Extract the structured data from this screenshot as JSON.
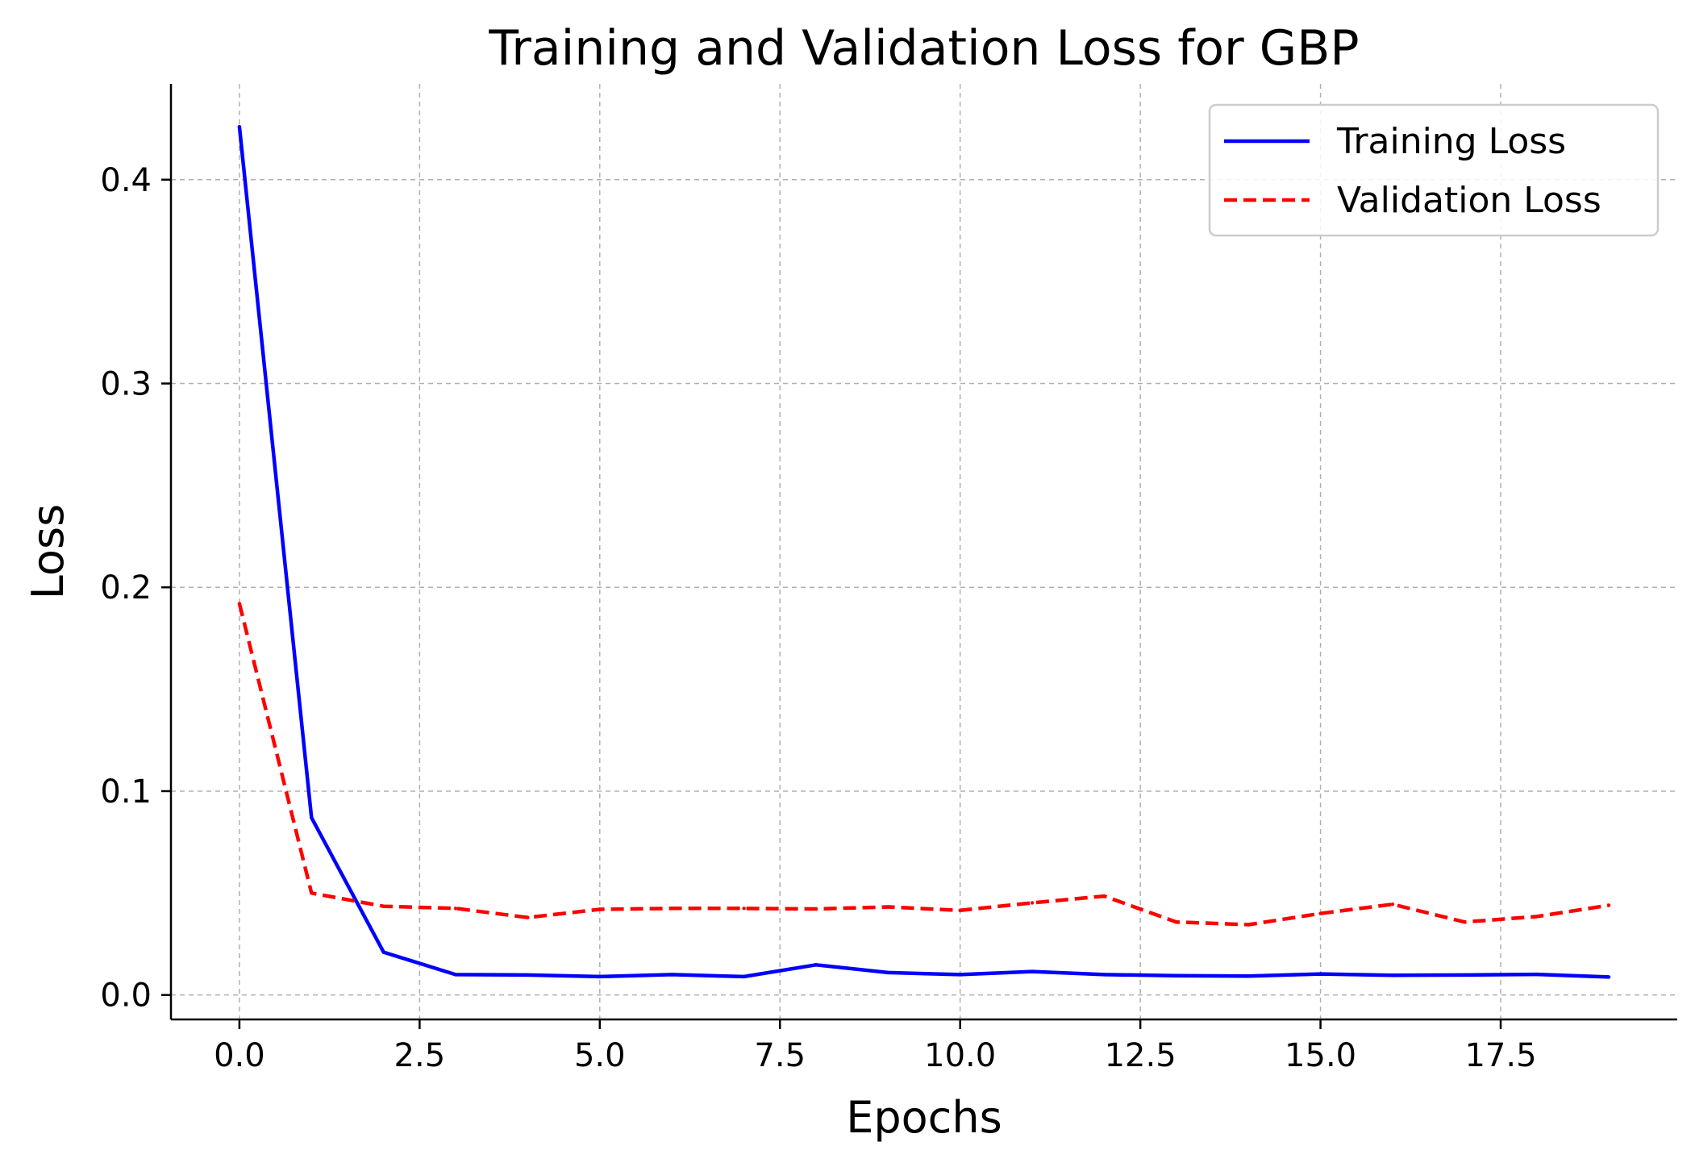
{
  "chart_data": {
    "type": "line",
    "title": "Training and Validation Loss for GBP",
    "xlabel": "Epochs",
    "ylabel": "Loss",
    "xlim": [
      -0.95,
      19.95
    ],
    "ylim": [
      -0.012,
      0.447
    ],
    "xticks": [
      0.0,
      2.5,
      5.0,
      7.5,
      10.0,
      12.5,
      15.0,
      17.5
    ],
    "xtick_labels": [
      "0.0",
      "2.5",
      "5.0",
      "7.5",
      "10.0",
      "12.5",
      "15.0",
      "17.5"
    ],
    "yticks": [
      0.0,
      0.1,
      0.2,
      0.3,
      0.4
    ],
    "ytick_labels": [
      "0.0",
      "0.1",
      "0.2",
      "0.3",
      "0.4"
    ],
    "grid": true,
    "legend_position": "top-right",
    "x": [
      0,
      1,
      2,
      3,
      4,
      5,
      6,
      7,
      8,
      9,
      10,
      11,
      12,
      13,
      14,
      15,
      16,
      17,
      18,
      19
    ],
    "series": [
      {
        "name": "Training Loss",
        "color": "#0000ff",
        "style": "solid",
        "values": [
          0.426,
          0.087,
          0.021,
          0.01,
          0.0098,
          0.009,
          0.01,
          0.009,
          0.0148,
          0.011,
          0.01,
          0.0115,
          0.01,
          0.0095,
          0.0093,
          0.0103,
          0.0097,
          0.0098,
          0.0101,
          0.0088
        ]
      },
      {
        "name": "Validation Loss",
        "color": "#ff0000",
        "style": "dashed",
        "values": [
          0.192,
          0.05,
          0.0435,
          0.0425,
          0.038,
          0.042,
          0.0425,
          0.0425,
          0.0422,
          0.0432,
          0.0415,
          0.0452,
          0.0485,
          0.0358,
          0.0345,
          0.04,
          0.0445,
          0.0358,
          0.0385,
          0.044
        ]
      }
    ]
  }
}
